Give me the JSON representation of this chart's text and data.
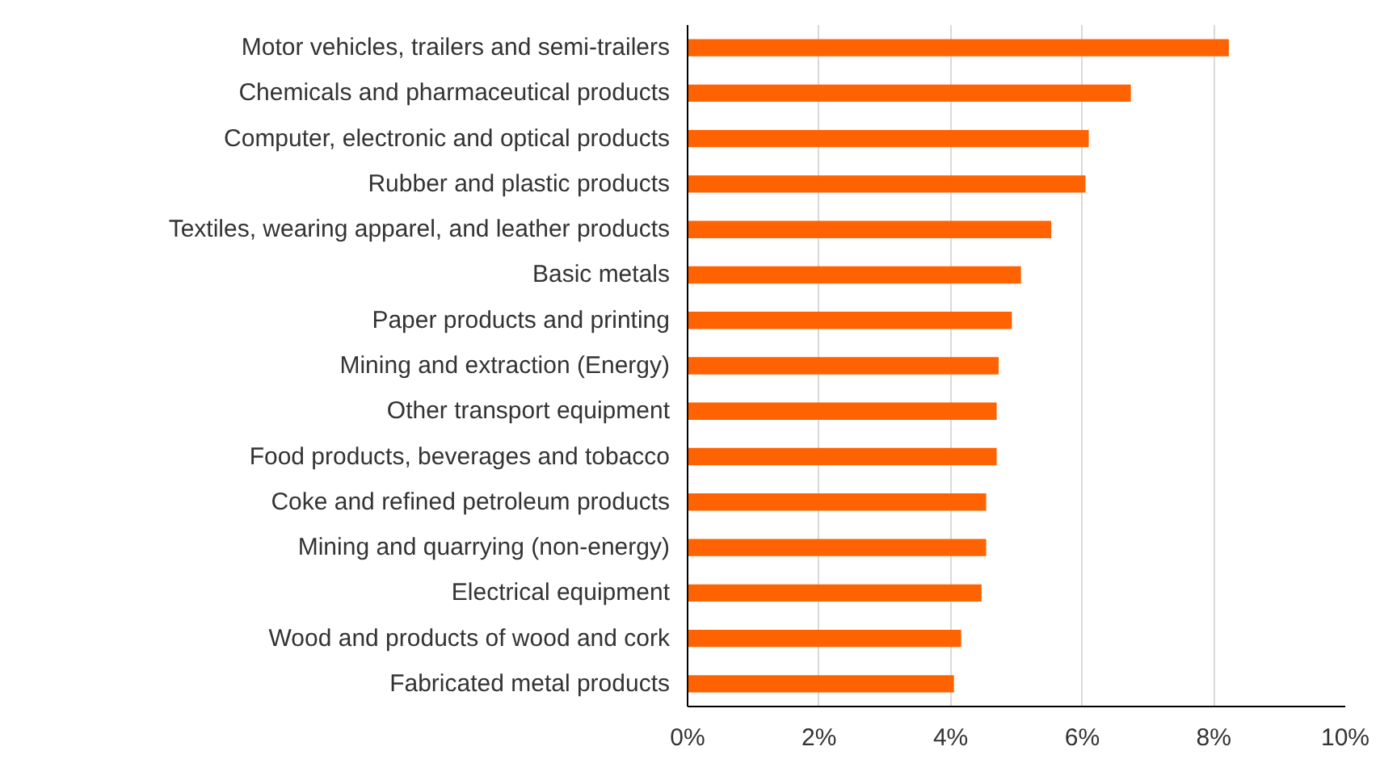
{
  "chart_data": {
    "type": "bar",
    "orientation": "horizontal",
    "categories": [
      "Motor vehicles, trailers and semi-trailers",
      "Chemicals and pharmaceutical products",
      "Computer, electronic and optical products",
      "Rubber and plastic products",
      "Textiles, wearing apparel, and leather products",
      "Basic metals",
      "Paper products and printing",
      "Mining and extraction (Energy)",
      "Other transport equipment",
      "Food products, beverages and tobacco",
      "Coke and refined petroleum products",
      "Mining and quarrying (non-energy)",
      "Electrical equipment",
      "Wood and products of wood and cork",
      "Fabricated metal products"
    ],
    "values": [
      8.23,
      6.74,
      6.1,
      6.05,
      5.53,
      5.07,
      4.93,
      4.73,
      4.7,
      4.7,
      4.54,
      4.54,
      4.47,
      4.16,
      4.05
    ],
    "color": "#ff6200",
    "xlim": [
      0,
      10
    ],
    "xticks": [
      {
        "value": 0,
        "label": "0%"
      },
      {
        "value": 2,
        "label": "2%"
      },
      {
        "value": 4,
        "label": "4%"
      },
      {
        "value": 6,
        "label": "6%"
      },
      {
        "value": 8,
        "label": "8%"
      },
      {
        "value": 10,
        "label": "10%"
      }
    ],
    "grid": "x"
  }
}
